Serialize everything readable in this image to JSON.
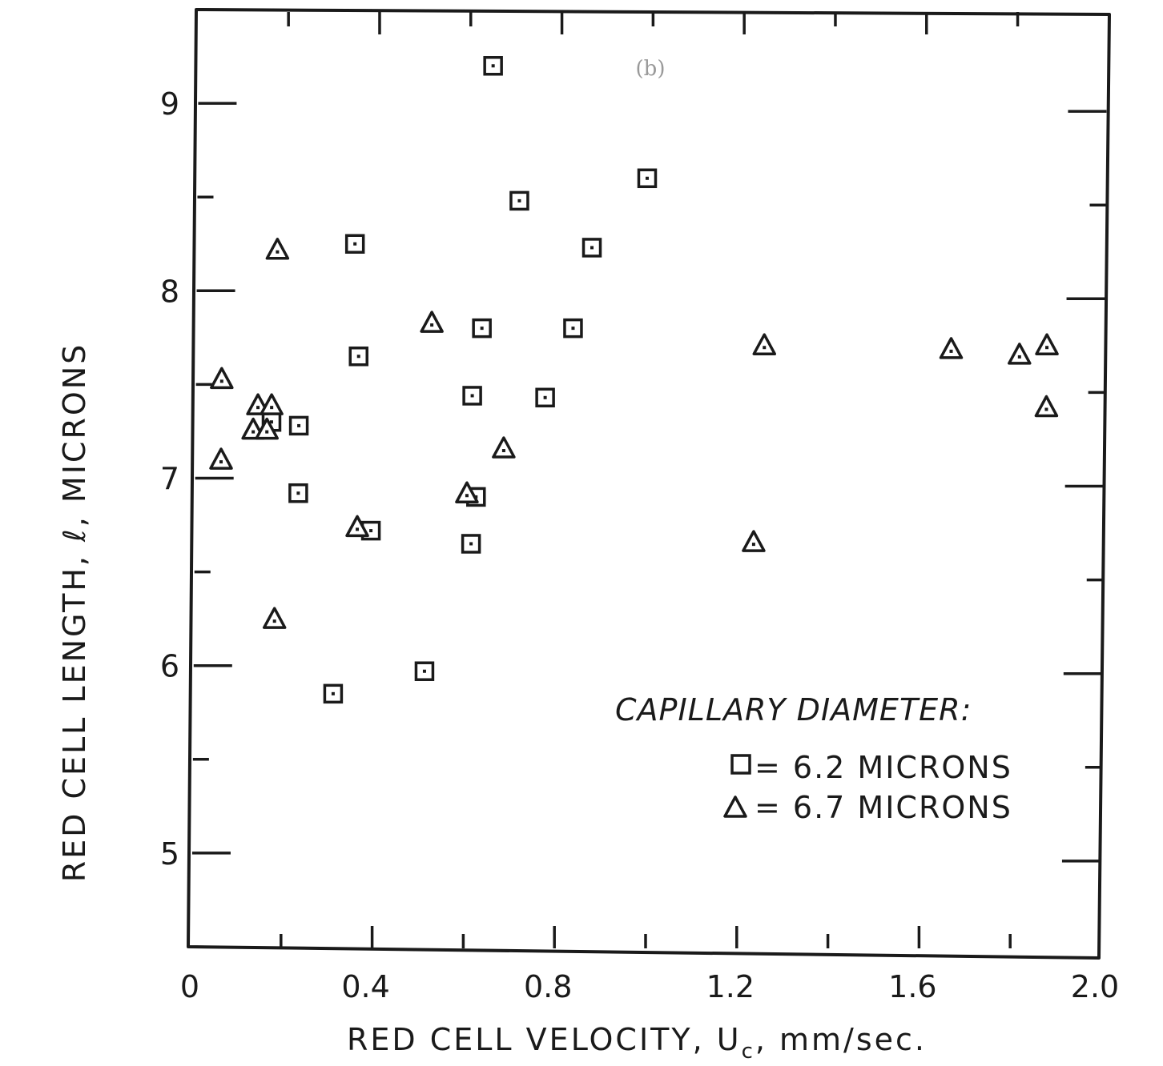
{
  "chart_data": {
    "type": "scatter",
    "panel_label": "(b)",
    "xlabel": "RED CELL VELOCITY, U",
    "xlabel_subscript": "c",
    "xlabel_unit": ", mm/sec.",
    "ylabel": "RED CELL LENGTH, ℓ, MICRONS",
    "xlim": [
      0,
      2.0
    ],
    "ylim": [
      4.5,
      9.5
    ],
    "x_ticks": [
      {
        "value": 0,
        "label": "0"
      },
      {
        "value": 0.4,
        "label": "0.4"
      },
      {
        "value": 0.8,
        "label": "0.8"
      },
      {
        "value": 1.2,
        "label": "1.2"
      },
      {
        "value": 1.6,
        "label": "1.6"
      },
      {
        "value": 2.0,
        "label": "2.0"
      }
    ],
    "y_ticks": [
      {
        "value": 5,
        "label": "5"
      },
      {
        "value": 6,
        "label": "6"
      },
      {
        "value": 7,
        "label": "7"
      },
      {
        "value": 8,
        "label": "8"
      },
      {
        "value": 9,
        "label": "9"
      }
    ],
    "grid": false,
    "legend": {
      "title": "CAPILLARY DIAMETER:",
      "placement": "lower-right",
      "entries": [
        {
          "marker": "square",
          "label": "= 6.2  MICRONS"
        },
        {
          "marker": "triangle",
          "label": "= 6.7  MICRONS"
        }
      ]
    },
    "series": [
      {
        "marker": "square",
        "points": [
          {
            "x": 0.65,
            "y": 9.2
          },
          {
            "x": 0.99,
            "y": 8.6
          },
          {
            "x": 0.71,
            "y": 8.48
          },
          {
            "x": 0.35,
            "y": 8.25
          },
          {
            "x": 0.87,
            "y": 8.23
          },
          {
            "x": 0.63,
            "y": 7.8
          },
          {
            "x": 0.83,
            "y": 7.8
          },
          {
            "x": 0.36,
            "y": 7.65
          },
          {
            "x": 0.61,
            "y": 7.44
          },
          {
            "x": 0.77,
            "y": 7.43
          },
          {
            "x": 0.23,
            "y": 7.28
          },
          {
            "x": 0.17,
            "y": 7.3
          },
          {
            "x": 0.23,
            "y": 6.92
          },
          {
            "x": 0.62,
            "y": 6.9
          },
          {
            "x": 0.39,
            "y": 6.72
          },
          {
            "x": 0.61,
            "y": 6.65
          },
          {
            "x": 0.51,
            "y": 5.97
          },
          {
            "x": 0.31,
            "y": 5.85
          }
        ]
      },
      {
        "marker": "triangle",
        "points": [
          {
            "x": 0.18,
            "y": 8.22
          },
          {
            "x": 0.52,
            "y": 7.83
          },
          {
            "x": 1.25,
            "y": 7.71
          },
          {
            "x": 1.66,
            "y": 7.69
          },
          {
            "x": 1.81,
            "y": 7.66
          },
          {
            "x": 1.87,
            "y": 7.71
          },
          {
            "x": 0.06,
            "y": 7.53
          },
          {
            "x": 0.14,
            "y": 7.39
          },
          {
            "x": 0.17,
            "y": 7.39
          },
          {
            "x": 0.13,
            "y": 7.26
          },
          {
            "x": 0.16,
            "y": 7.26
          },
          {
            "x": 1.87,
            "y": 7.38
          },
          {
            "x": 0.68,
            "y": 7.16
          },
          {
            "x": 0.06,
            "y": 7.1
          },
          {
            "x": 0.6,
            "y": 6.92
          },
          {
            "x": 0.36,
            "y": 6.74
          },
          {
            "x": 1.23,
            "y": 6.66
          },
          {
            "x": 0.18,
            "y": 6.25
          }
        ]
      }
    ]
  }
}
